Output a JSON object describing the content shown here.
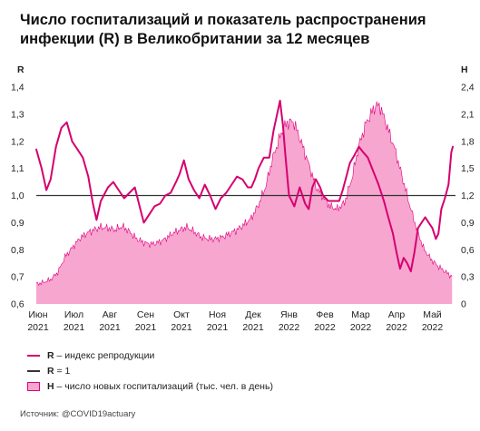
{
  "title": "Число госпитализаций и показатель распространения инфекции (R) в Великобритании за 12 месяцев",
  "source": "Источник: @COVID19actuary",
  "legend": {
    "r_key": "R",
    "r_text": " – индекс репродукции",
    "one_key": "R",
    "one_text": " = 1",
    "h_key": "H",
    "h_text": " – число новых госпитализаций (тыс. чел. в день)"
  },
  "chart_data": {
    "type": "line",
    "left_axis": {
      "label": "R",
      "min": 0.6,
      "max": 1.4,
      "ticks": [
        "0,6",
        "0,7",
        "0,8",
        "0,9",
        "1,0",
        "1,1",
        "1,2",
        "1,3",
        "1,4"
      ]
    },
    "right_axis": {
      "label": "H",
      "min": 0,
      "max": 2.4,
      "ticks": [
        "0",
        "0,3",
        "0,6",
        "0,9",
        "1,2",
        "1,5",
        "1,8",
        "2,1",
        "2,4"
      ]
    },
    "x_labels": [
      [
        "Июн",
        "2021"
      ],
      [
        "Июл",
        "2021"
      ],
      [
        "Авг",
        "2021"
      ],
      [
        "Сен",
        "2021"
      ],
      [
        "Окт",
        "2021"
      ],
      [
        "Ноя",
        "2021"
      ],
      [
        "Дек",
        "2021"
      ],
      [
        "Янв",
        "2022"
      ],
      [
        "Фев",
        "2022"
      ],
      [
        "Мар",
        "2022"
      ],
      [
        "Апр",
        "2022"
      ],
      [
        "Май",
        "2022"
      ]
    ],
    "reference_line": {
      "axis": "R",
      "value": 1.0,
      "color": "#333333"
    },
    "r_series": {
      "name": "R – индекс репродукции",
      "color": "#d6006f",
      "points": [
        [
          0.0,
          1.17
        ],
        [
          0.15,
          1.1
        ],
        [
          0.28,
          1.02
        ],
        [
          0.4,
          1.06
        ],
        [
          0.55,
          1.18
        ],
        [
          0.7,
          1.25
        ],
        [
          0.85,
          1.27
        ],
        [
          1.0,
          1.2
        ],
        [
          1.15,
          1.17
        ],
        [
          1.3,
          1.14
        ],
        [
          1.45,
          1.07
        ],
        [
          1.58,
          0.97
        ],
        [
          1.68,
          0.91
        ],
        [
          1.8,
          0.98
        ],
        [
          2.0,
          1.03
        ],
        [
          2.15,
          1.05
        ],
        [
          2.3,
          1.02
        ],
        [
          2.45,
          0.99
        ],
        [
          2.6,
          1.01
        ],
        [
          2.75,
          1.03
        ],
        [
          2.9,
          0.95
        ],
        [
          3.0,
          0.9
        ],
        [
          3.15,
          0.93
        ],
        [
          3.3,
          0.96
        ],
        [
          3.45,
          0.97
        ],
        [
          3.6,
          1.0
        ],
        [
          3.75,
          1.01
        ],
        [
          3.9,
          1.05
        ],
        [
          4.0,
          1.08
        ],
        [
          4.12,
          1.13
        ],
        [
          4.25,
          1.06
        ],
        [
          4.4,
          1.02
        ],
        [
          4.55,
          0.99
        ],
        [
          4.7,
          1.04
        ],
        [
          4.85,
          1.0
        ],
        [
          5.0,
          0.95
        ],
        [
          5.15,
          0.99
        ],
        [
          5.3,
          1.01
        ],
        [
          5.45,
          1.04
        ],
        [
          5.6,
          1.07
        ],
        [
          5.75,
          1.06
        ],
        [
          5.9,
          1.03
        ],
        [
          6.0,
          1.03
        ],
        [
          6.1,
          1.06
        ],
        [
          6.2,
          1.1
        ],
        [
          6.35,
          1.14
        ],
        [
          6.5,
          1.14
        ],
        [
          6.62,
          1.24
        ],
        [
          6.72,
          1.3
        ],
        [
          6.8,
          1.35
        ],
        [
          6.88,
          1.26
        ],
        [
          6.95,
          1.15
        ],
        [
          7.05,
          1.0
        ],
        [
          7.2,
          0.96
        ],
        [
          7.35,
          1.03
        ],
        [
          7.5,
          0.97
        ],
        [
          7.6,
          0.95
        ],
        [
          7.7,
          1.03
        ],
        [
          7.8,
          1.06
        ],
        [
          7.92,
          1.03
        ],
        [
          8.0,
          1.0
        ],
        [
          8.15,
          0.98
        ],
        [
          8.3,
          0.98
        ],
        [
          8.45,
          0.98
        ],
        [
          8.55,
          1.02
        ],
        [
          8.65,
          1.07
        ],
        [
          8.75,
          1.12
        ],
        [
          8.88,
          1.15
        ],
        [
          9.0,
          1.18
        ],
        [
          9.12,
          1.16
        ],
        [
          9.25,
          1.14
        ],
        [
          9.4,
          1.09
        ],
        [
          9.55,
          1.04
        ],
        [
          9.7,
          0.98
        ],
        [
          9.82,
          0.92
        ],
        [
          9.95,
          0.86
        ],
        [
          10.05,
          0.79
        ],
        [
          10.15,
          0.73
        ],
        [
          10.25,
          0.77
        ],
        [
          10.35,
          0.75
        ],
        [
          10.45,
          0.72
        ],
        [
          10.55,
          0.79
        ],
        [
          10.65,
          0.88
        ],
        [
          10.75,
          0.9
        ],
        [
          10.85,
          0.92
        ],
        [
          10.95,
          0.9
        ],
        [
          11.05,
          0.88
        ],
        [
          11.15,
          0.84
        ],
        [
          11.22,
          0.86
        ],
        [
          11.3,
          0.95
        ],
        [
          11.4,
          0.99
        ],
        [
          11.5,
          1.04
        ],
        [
          11.58,
          1.16
        ],
        [
          11.62,
          1.18
        ]
      ]
    },
    "h_series": {
      "name": "H – число новых госпитализаций (тыс. чел. в день)",
      "fill": "#f7a6cf",
      "stroke": "#e0007f",
      "points": [
        [
          0.0,
          0.22
        ],
        [
          0.2,
          0.24
        ],
        [
          0.4,
          0.27
        ],
        [
          0.6,
          0.35
        ],
        [
          0.8,
          0.52
        ],
        [
          1.0,
          0.62
        ],
        [
          1.2,
          0.72
        ],
        [
          1.4,
          0.78
        ],
        [
          1.6,
          0.82
        ],
        [
          1.8,
          0.85
        ],
        [
          2.0,
          0.84
        ],
        [
          2.2,
          0.82
        ],
        [
          2.4,
          0.86
        ],
        [
          2.6,
          0.8
        ],
        [
          2.8,
          0.72
        ],
        [
          3.0,
          0.68
        ],
        [
          3.2,
          0.66
        ],
        [
          3.4,
          0.68
        ],
        [
          3.6,
          0.72
        ],
        [
          3.8,
          0.78
        ],
        [
          4.0,
          0.82
        ],
        [
          4.2,
          0.85
        ],
        [
          4.4,
          0.8
        ],
        [
          4.6,
          0.74
        ],
        [
          4.8,
          0.72
        ],
        [
          5.0,
          0.72
        ],
        [
          5.2,
          0.74
        ],
        [
          5.4,
          0.78
        ],
        [
          5.6,
          0.82
        ],
        [
          5.8,
          0.88
        ],
        [
          6.0,
          0.95
        ],
        [
          6.2,
          1.1
        ],
        [
          6.4,
          1.3
        ],
        [
          6.6,
          1.62
        ],
        [
          6.8,
          1.85
        ],
        [
          6.9,
          1.95
        ],
        [
          7.0,
          2.0
        ],
        [
          7.1,
          2.02
        ],
        [
          7.2,
          2.0
        ],
        [
          7.4,
          1.78
        ],
        [
          7.6,
          1.55
        ],
        [
          7.8,
          1.3
        ],
        [
          8.0,
          1.18
        ],
        [
          8.2,
          1.08
        ],
        [
          8.4,
          1.05
        ],
        [
          8.6,
          1.12
        ],
        [
          8.8,
          1.38
        ],
        [
          9.0,
          1.75
        ],
        [
          9.2,
          2.0
        ],
        [
          9.4,
          2.15
        ],
        [
          9.5,
          2.2
        ],
        [
          9.6,
          2.18
        ],
        [
          9.8,
          1.95
        ],
        [
          10.0,
          1.72
        ],
        [
          10.2,
          1.42
        ],
        [
          10.4,
          1.12
        ],
        [
          10.6,
          0.85
        ],
        [
          10.8,
          0.62
        ],
        [
          11.0,
          0.5
        ],
        [
          11.2,
          0.42
        ],
        [
          11.4,
          0.36
        ],
        [
          11.6,
          0.3
        ]
      ]
    }
  }
}
